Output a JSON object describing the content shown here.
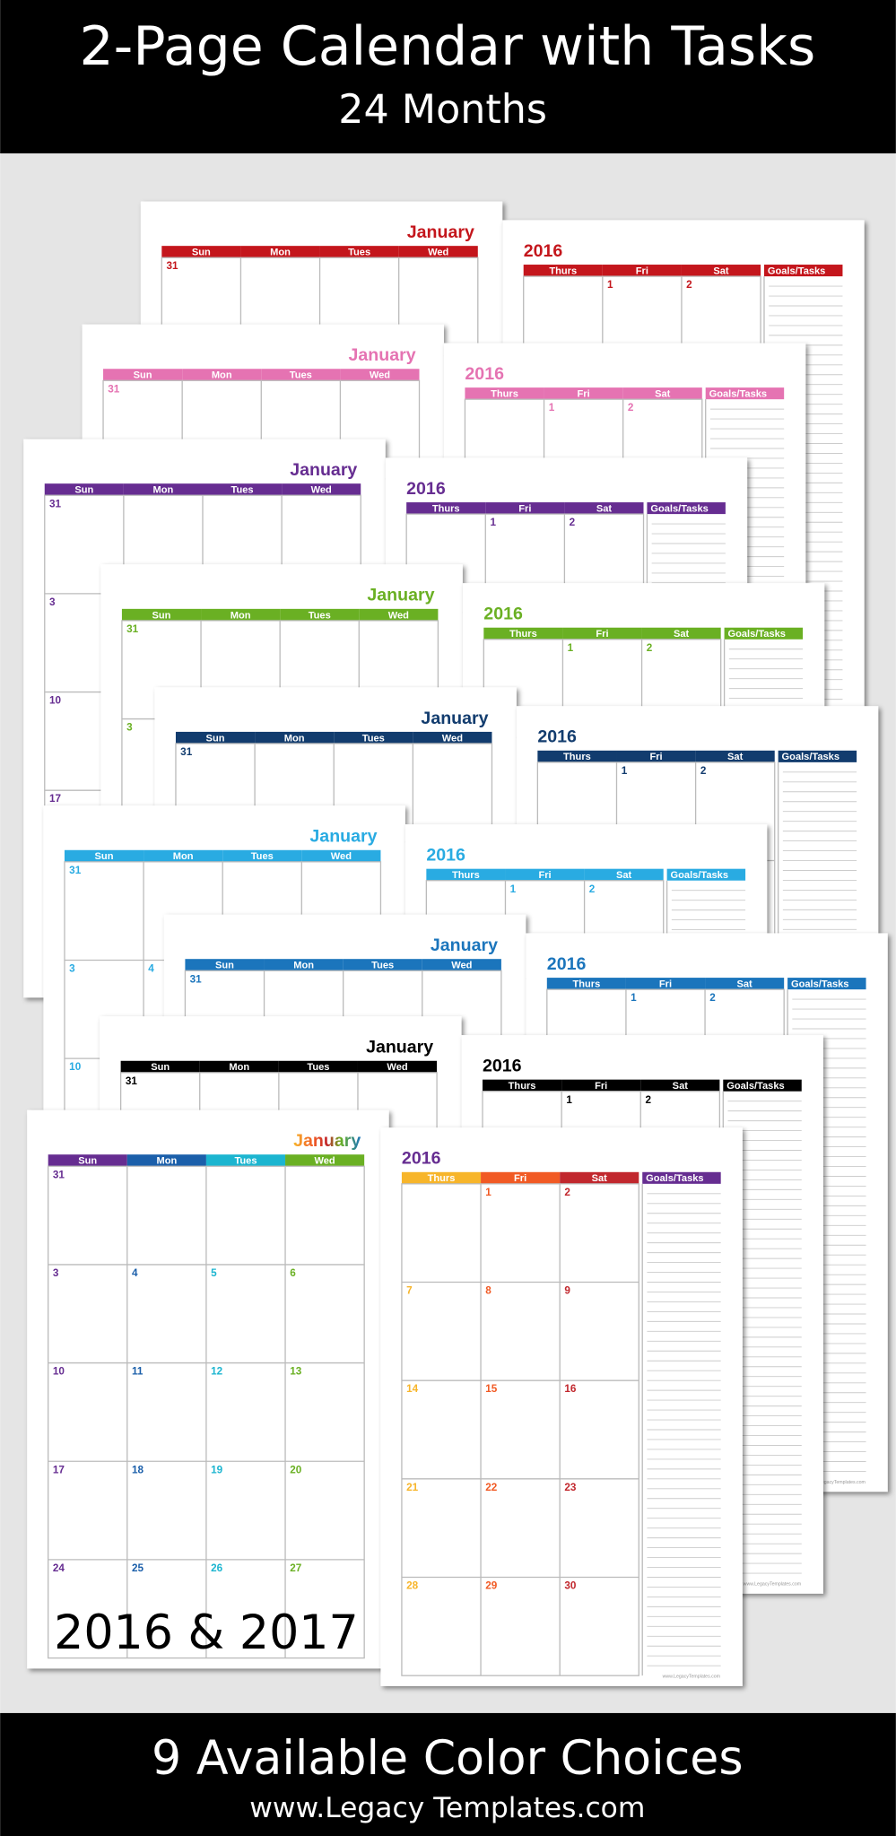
{
  "header": {
    "title": "2-Page Calendar with Tasks",
    "subtitle": "24 Months"
  },
  "calendar": {
    "month": "January",
    "year": "2016",
    "days": [
      "Sun",
      "Mon",
      "Tues",
      "Wed",
      "Thurs",
      "Fri",
      "Sat"
    ],
    "goals_label": "Goals/Tasks",
    "left_dates": [
      [
        31,
        null,
        null,
        null
      ],
      [
        3,
        4,
        5,
        6
      ],
      [
        10,
        11,
        12,
        13
      ],
      [
        17,
        18,
        19,
        20
      ],
      [
        24,
        25,
        26,
        27
      ]
    ],
    "right_dates": [
      [
        null,
        1,
        2
      ],
      [
        7,
        8,
        9
      ],
      [
        14,
        15,
        16
      ],
      [
        21,
        22,
        23
      ],
      [
        28,
        29,
        30
      ]
    ],
    "page_note": "www.LegacyTemplates.com"
  },
  "variants": [
    {
      "color": "#c4161c"
    },
    {
      "color": "#e573b2"
    },
    {
      "color": "#662d91"
    },
    {
      "color": "#6ab023"
    },
    {
      "color": "#123c6e"
    },
    {
      "color": "#29abe2"
    },
    {
      "color": "#1b75bc"
    },
    {
      "color": "#000000"
    }
  ],
  "front": {
    "day_colors": [
      "#662d91",
      "#1b5faa",
      "#1cb5d0",
      "#6ab023",
      "#f7b52a",
      "#f15a24",
      "#c1272d"
    ]
  },
  "overlay": "2016 & 2017",
  "footer": {
    "title": "9 Available Color Choices",
    "url": "www.Legacy Templates.com"
  }
}
